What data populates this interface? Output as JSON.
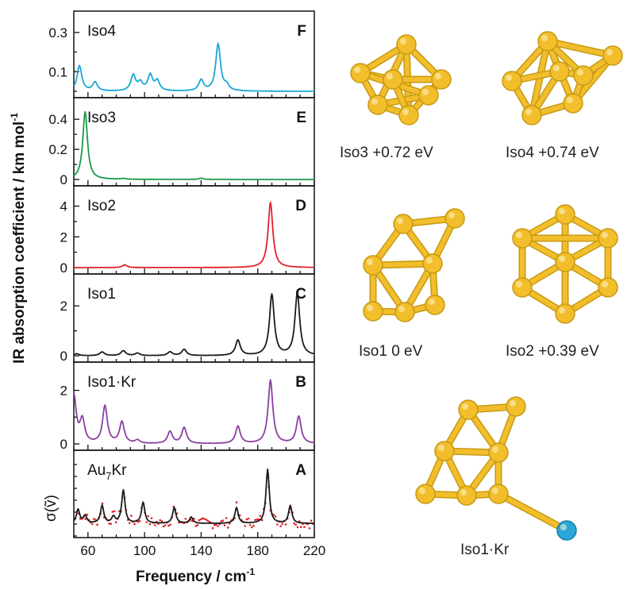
{
  "figure": {
    "ylabel_main": "IR absorption coefficient  / km mol",
    "ylabel_sup": "-1",
    "xlabel_main": "Frequency / cm",
    "xlabel_sup": "-1",
    "exp_ylabel": "σ(ṽ)"
  },
  "structures": {
    "captions": [
      "Iso3  +0.72 eV",
      "Iso4  +0.74 eV",
      "Iso1  0 eV",
      "Iso2  +0.39 eV",
      "Iso1·Kr"
    ],
    "gold_color": "#f2be2c",
    "krypton_color": "#2aa6d8"
  },
  "chart_data": [
    {
      "type": "line",
      "panel_letter": "F",
      "label": "Iso4",
      "color": "#17a8d8",
      "xlim": [
        50,
        220
      ],
      "ylim": [
        0,
        0.36
      ],
      "yticks": [
        0.1,
        0.3
      ],
      "peaks": [
        [
          54,
          0.13
        ],
        [
          65,
          0.045
        ],
        [
          92,
          0.08
        ],
        [
          97,
          0.04
        ],
        [
          104,
          0.08
        ],
        [
          109,
          0.05
        ],
        [
          140,
          0.055
        ],
        [
          152,
          0.24
        ],
        [
          158,
          0.025
        ]
      ]
    },
    {
      "type": "line",
      "panel_letter": "E",
      "label": "Iso3",
      "color": "#1a9a48",
      "xlim": [
        50,
        220
      ],
      "ylim": [
        0,
        0.48
      ],
      "yticks": [
        0.0,
        0.2,
        0.4
      ],
      "peaks": [
        [
          58,
          0.45
        ],
        [
          85,
          0.005
        ],
        [
          140,
          0.008
        ]
      ]
    },
    {
      "type": "line",
      "panel_letter": "D",
      "label": "Iso2",
      "color": "#e0222a",
      "xlim": [
        50,
        220
      ],
      "ylim": [
        0,
        4.7
      ],
      "yticks": [
        0,
        2,
        4
      ],
      "peaks": [
        [
          86,
          0.18
        ],
        [
          189,
          4.25
        ]
      ]
    },
    {
      "type": "line",
      "panel_letter": "C",
      "label": "Iso1",
      "color": "#1a1a1a",
      "xlim": [
        50,
        220
      ],
      "ylim": [
        0,
        2.9
      ],
      "yticks": [
        0,
        2
      ],
      "peaks": [
        [
          52,
          0.08
        ],
        [
          70,
          0.15
        ],
        [
          85,
          0.2
        ],
        [
          95,
          0.1
        ],
        [
          118,
          0.15
        ],
        [
          128,
          0.25
        ],
        [
          166,
          0.62
        ],
        [
          190,
          2.45
        ],
        [
          208,
          2.5
        ]
      ]
    },
    {
      "type": "line",
      "panel_letter": "B",
      "label": "Iso1·Kr",
      "color": "#8a3fa0",
      "xlim": [
        50,
        220
      ],
      "ylim": [
        0,
        2.7
      ],
      "yticks": [
        0,
        2
      ],
      "peaks": [
        [
          50,
          1.8
        ],
        [
          56,
          0.85
        ],
        [
          72,
          1.4
        ],
        [
          84,
          0.8
        ],
        [
          95,
          0.12
        ],
        [
          118,
          0.45
        ],
        [
          128,
          0.6
        ],
        [
          166,
          0.65
        ],
        [
          189,
          2.38
        ],
        [
          209,
          1.02
        ]
      ]
    },
    {
      "type": "line",
      "panel_letter": "A",
      "label": "Au",
      "label_sub": "7",
      "label_tail": "Kr",
      "color": "#1a1a1a",
      "dot_color": "#e0222a",
      "xlim": [
        50,
        220
      ],
      "xticks": [
        60,
        100,
        140,
        180,
        220
      ],
      "peaks": [
        [
          53,
          0.22
        ],
        [
          58,
          0.12
        ],
        [
          70,
          0.28
        ],
        [
          78,
          0.1
        ],
        [
          85,
          0.52
        ],
        [
          99,
          0.33
        ],
        [
          121,
          0.25
        ],
        [
          133,
          0.1
        ],
        [
          165,
          0.25
        ],
        [
          187,
          0.85
        ],
        [
          203,
          0.28
        ]
      ]
    }
  ]
}
